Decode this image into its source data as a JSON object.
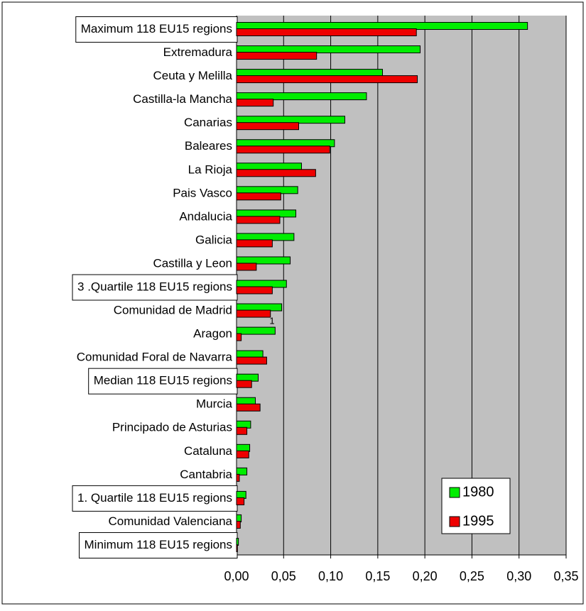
{
  "chart_data": {
    "type": "hbar",
    "categories": [
      "Maximum 118 EU15 regions",
      "Extremadura",
      "Ceuta y Melilla",
      "Castilla-la Mancha",
      "Canarias",
      "Baleares",
      "La Rioja",
      "Pais Vasco",
      "Andalucia",
      "Galicia",
      "Castilla y Leon",
      "3 .Quartile 118 EU15 regions",
      "Comunidad de Madrid",
      "Aragon",
      "Comunidad Foral de Navarra",
      "Median 118 EU15 regions",
      "Murcia",
      "Principado de Asturias",
      "Cataluna",
      "Cantabria",
      "1. Quartile 118 EU15 regions",
      "Comunidad Valenciana",
      "Minimum 118 EU15 regions"
    ],
    "series": [
      {
        "name": "1980",
        "color": "#00ee00",
        "values": [
          0.309,
          0.195,
          0.155,
          0.138,
          0.115,
          0.104,
          0.069,
          0.065,
          0.063,
          0.061,
          0.057,
          0.053,
          0.048,
          0.041,
          0.028,
          0.023,
          0.02,
          0.015,
          0.014,
          0.011,
          0.01,
          0.005,
          0.002
        ]
      },
      {
        "name": "1995",
        "color": "#ee0000",
        "values": [
          0.191,
          0.085,
          0.192,
          0.039,
          0.066,
          0.099,
          0.084,
          0.047,
          0.046,
          0.038,
          0.021,
          0.038,
          0.036,
          0.005,
          0.032,
          0.016,
          0.025,
          0.011,
          0.013,
          0.003,
          0.008,
          0.004,
          0.001
        ]
      }
    ],
    "annotations": [
      "1"
    ],
    "xlim": [
      0,
      0.35
    ],
    "xticks": [
      {
        "value": 0,
        "label": "0,00"
      },
      {
        "value": 0.05,
        "label": "0,05"
      },
      {
        "value": 0.1,
        "label": "0,10"
      },
      {
        "value": 0.15,
        "label": "0,15"
      },
      {
        "value": 0.2,
        "label": "0,20"
      },
      {
        "value": 0.25,
        "label": "0,25"
      },
      {
        "value": 0.3,
        "label": "0,30"
      },
      {
        "value": 0.35,
        "label": "0,35"
      }
    ],
    "grid": true,
    "legend": "lower right",
    "background": "#c0c0c0"
  }
}
